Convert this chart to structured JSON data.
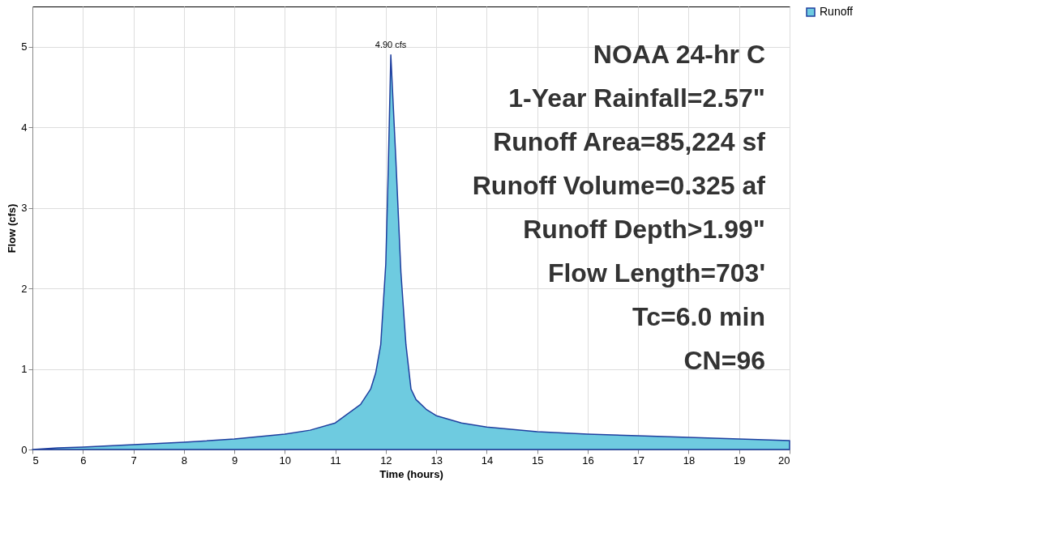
{
  "chart_data": {
    "type": "area",
    "xlabel": "Time  (hours)",
    "ylabel": "Flow  (cfs)",
    "x": [
      5,
      5.5,
      6,
      7,
      8,
      9,
      10,
      10.5,
      11,
      11.5,
      11.7,
      11.8,
      11.9,
      12.0,
      12.05,
      12.1,
      12.2,
      12.3,
      12.4,
      12.5,
      12.6,
      12.8,
      13,
      13.5,
      14,
      15,
      16,
      17,
      18,
      19,
      20
    ],
    "series": [
      {
        "name": "Runoff",
        "color": "#6ecbe0",
        "values": [
          0,
          0.02,
          0.03,
          0.06,
          0.09,
          0.13,
          0.19,
          0.24,
          0.33,
          0.56,
          0.75,
          0.95,
          1.3,
          2.3,
          3.5,
          4.9,
          3.6,
          2.2,
          1.3,
          0.75,
          0.62,
          0.5,
          0.42,
          0.33,
          0.28,
          0.22,
          0.19,
          0.17,
          0.15,
          0.13,
          0.11
        ]
      }
    ],
    "xlim": [
      5,
      20
    ],
    "xticks": [
      5,
      6,
      7,
      8,
      9,
      10,
      11,
      12,
      13,
      14,
      15,
      16,
      17,
      18,
      19,
      20
    ],
    "ylim": [
      0,
      5.5
    ],
    "yticks": [
      0,
      1,
      2,
      3,
      4,
      5
    ],
    "grid": true,
    "legend": "top right",
    "annotations": [
      {
        "text": "4.90 cfs",
        "x": 12.1,
        "y": 4.9
      },
      "NOAA 24-hr C",
      "1-Year Rainfall=2.57\"",
      "Runoff Area=85,224 sf",
      "Runoff Volume=0.325 af",
      "Runoff Depth>1.99\"",
      "Flow Length=703'",
      "Tc=6.0 min",
      "CN=96"
    ]
  }
}
